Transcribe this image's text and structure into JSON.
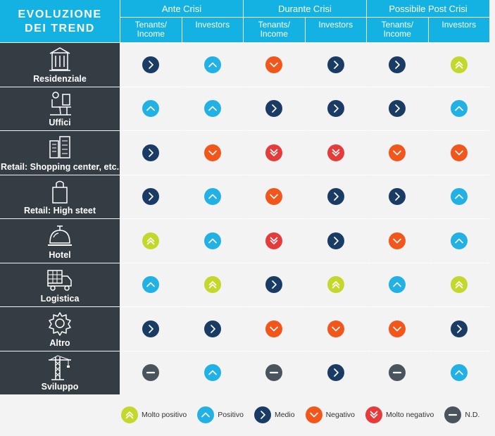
{
  "header": {
    "title_line1": "EVOLUZIONE",
    "title_line2": "DEI TREND",
    "groups": [
      "Ante Crisi",
      "Durante Crisi",
      "Possibile Post Crisi"
    ],
    "sub_tenants": "Tenants/ Income",
    "sub_investors": "Investors"
  },
  "rows": [
    {
      "label": "Residenziale",
      "icon": "building-icon",
      "values": [
        "medio",
        "positivo",
        "negativo",
        "medio",
        "medio",
        "molto_positivo"
      ]
    },
    {
      "label": "Uffici",
      "icon": "office-worker-icon",
      "values": [
        "positivo",
        "positivo",
        "medio",
        "medio",
        "medio",
        "positivo"
      ]
    },
    {
      "label": "Retail: Shopping center, etc.",
      "icon": "shopping-center-icon",
      "values": [
        "medio",
        "negativo",
        "molto_negativo",
        "molto_negativo",
        "negativo",
        "negativo"
      ]
    },
    {
      "label": "Retail: High steet",
      "icon": "shopping-bag-icon",
      "values": [
        "medio",
        "positivo",
        "negativo",
        "medio",
        "medio",
        "positivo"
      ]
    },
    {
      "label": "Hotel",
      "icon": "reception-bell-icon",
      "values": [
        "molto_positivo",
        "positivo",
        "molto_negativo",
        "medio",
        "negativo",
        "positivo"
      ]
    },
    {
      "label": "Logistica",
      "icon": "delivery-truck-icon",
      "values": [
        "positivo",
        "molto_positivo",
        "medio",
        "molto_positivo",
        "positivo",
        "molto_positivo"
      ]
    },
    {
      "label": "Altro",
      "icon": "gear-icon",
      "values": [
        "medio",
        "medio",
        "negativo",
        "negativo",
        "negativo",
        "medio"
      ]
    },
    {
      "label": "Sviluppo",
      "icon": "crane-icon",
      "values": [
        "nd",
        "positivo",
        "nd",
        "medio",
        "nd",
        "positivo"
      ]
    }
  ],
  "legend": [
    {
      "key": "molto_positivo",
      "label": "Molto positivo"
    },
    {
      "key": "positivo",
      "label": "Positivo"
    },
    {
      "key": "medio",
      "label": "Medio"
    },
    {
      "key": "negativo",
      "label": "Negativo"
    },
    {
      "key": "molto_negativo",
      "label": "Molto negativo"
    },
    {
      "key": "nd",
      "label": "N.D."
    }
  ],
  "colors": {
    "header_blue": "#14b2e2",
    "row_dark": "#353d44",
    "molto_positivo": "#c3d82b",
    "positivo": "#21b1e4",
    "medio": "#1a3c64",
    "negativo": "#f2561a",
    "molto_negativo": "#e53b3b",
    "nd": "#4a545c"
  }
}
